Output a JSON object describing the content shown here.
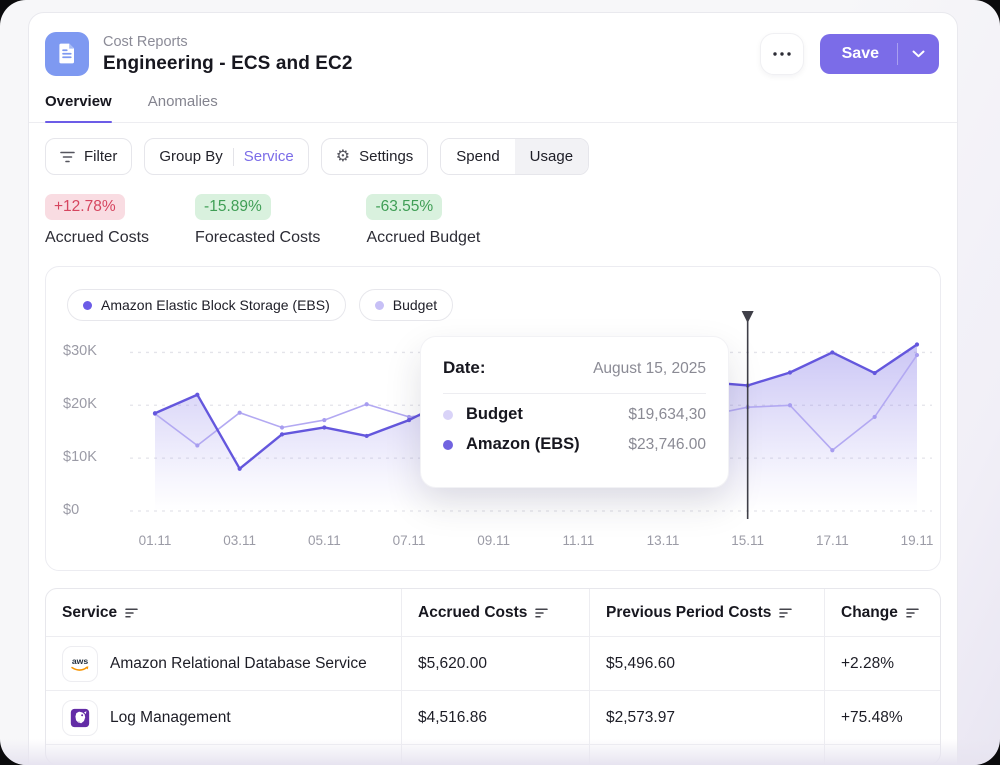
{
  "header": {
    "category": "Cost Reports",
    "title": "Engineering - ECS and EC2",
    "save_label": "Save"
  },
  "tabs": [
    {
      "label": "Overview",
      "active": true
    },
    {
      "label": "Anomalies",
      "active": false
    }
  ],
  "toolbar": {
    "filter_label": "Filter",
    "group_by_label": "Group By",
    "group_by_value": "Service",
    "settings_label": "Settings",
    "segments": [
      {
        "label": "Spend",
        "active": true
      },
      {
        "label": "Usage",
        "active": false
      }
    ]
  },
  "stats": [
    {
      "badge": "+12.78%",
      "direction": "up",
      "label": "Accrued Costs"
    },
    {
      "badge": "-15.89%",
      "direction": "down",
      "label": "Forecasted Costs"
    },
    {
      "badge": "-63.55%",
      "direction": "down",
      "label": "Accrued Budget"
    }
  ],
  "chart_data": {
    "type": "line",
    "x": [
      "01.11",
      "02.11",
      "03.11",
      "04.11",
      "05.11",
      "06.11",
      "07.11",
      "08.11",
      "09.11",
      "10.11",
      "11.11",
      "12.11",
      "13.11",
      "14.11",
      "15.11",
      "16.11",
      "17.11",
      "18.11",
      "19.11"
    ],
    "tick_every": 2,
    "ylim": [
      0,
      35000
    ],
    "yticks": [
      {
        "value": 30000,
        "label": "$30K"
      },
      {
        "value": 20000,
        "label": "$20K"
      },
      {
        "value": 10000,
        "label": "$10K"
      },
      {
        "value": 0,
        "label": "$0"
      }
    ],
    "grid": "dashed-horizontal",
    "legend_position": "top-left",
    "series": [
      {
        "name": "Budget",
        "color": "#b3a9f2",
        "dot_color": "#a79df0",
        "area": false,
        "values": [
          18400,
          12400,
          18600,
          15800,
          17200,
          20200,
          17800,
          18700,
          15900,
          15500,
          16800,
          17500,
          17600,
          18000,
          19634,
          20000,
          11500,
          17800,
          29500
        ]
      },
      {
        "name": "Amazon Elastic Block Storage (EBS)",
        "color": "#6457dd",
        "dot_color": "#6457dd",
        "area": true,
        "values": [
          18500,
          22000,
          8000,
          14500,
          15800,
          14200,
          17200,
          21200,
          11800,
          12600,
          15500,
          19200,
          22400,
          24400,
          23746,
          26200,
          30000,
          26100,
          31500
        ]
      }
    ],
    "legend": [
      {
        "label": "Amazon Elastic Block Storage (EBS)",
        "color": "#6c5ce7"
      },
      {
        "label": "Budget",
        "color": "#c7c0f6"
      }
    ],
    "crosshair_index": 14
  },
  "tooltip": {
    "date_label": "Date:",
    "date_value": "August 15, 2025",
    "rows": [
      {
        "label": "Budget",
        "value": "$19,634,30",
        "color": "#d9d3f8"
      },
      {
        "label": "Amazon (EBS)",
        "value": "$23,746.00",
        "color": "#7163e0"
      }
    ]
  },
  "table": {
    "headers": [
      "Service",
      "Accrued Costs",
      "Previous Period Costs",
      "Change"
    ],
    "rows": [
      {
        "icon": "aws",
        "service": "Amazon Relational Database Service",
        "accrued": "$5,620.00",
        "previous": "$5,496.60",
        "change": "+2.28%"
      },
      {
        "icon": "datadog",
        "service": "Log Management",
        "accrued": "$4,516.86",
        "previous": "$2,573.97",
        "change": "+75.48%"
      }
    ]
  }
}
